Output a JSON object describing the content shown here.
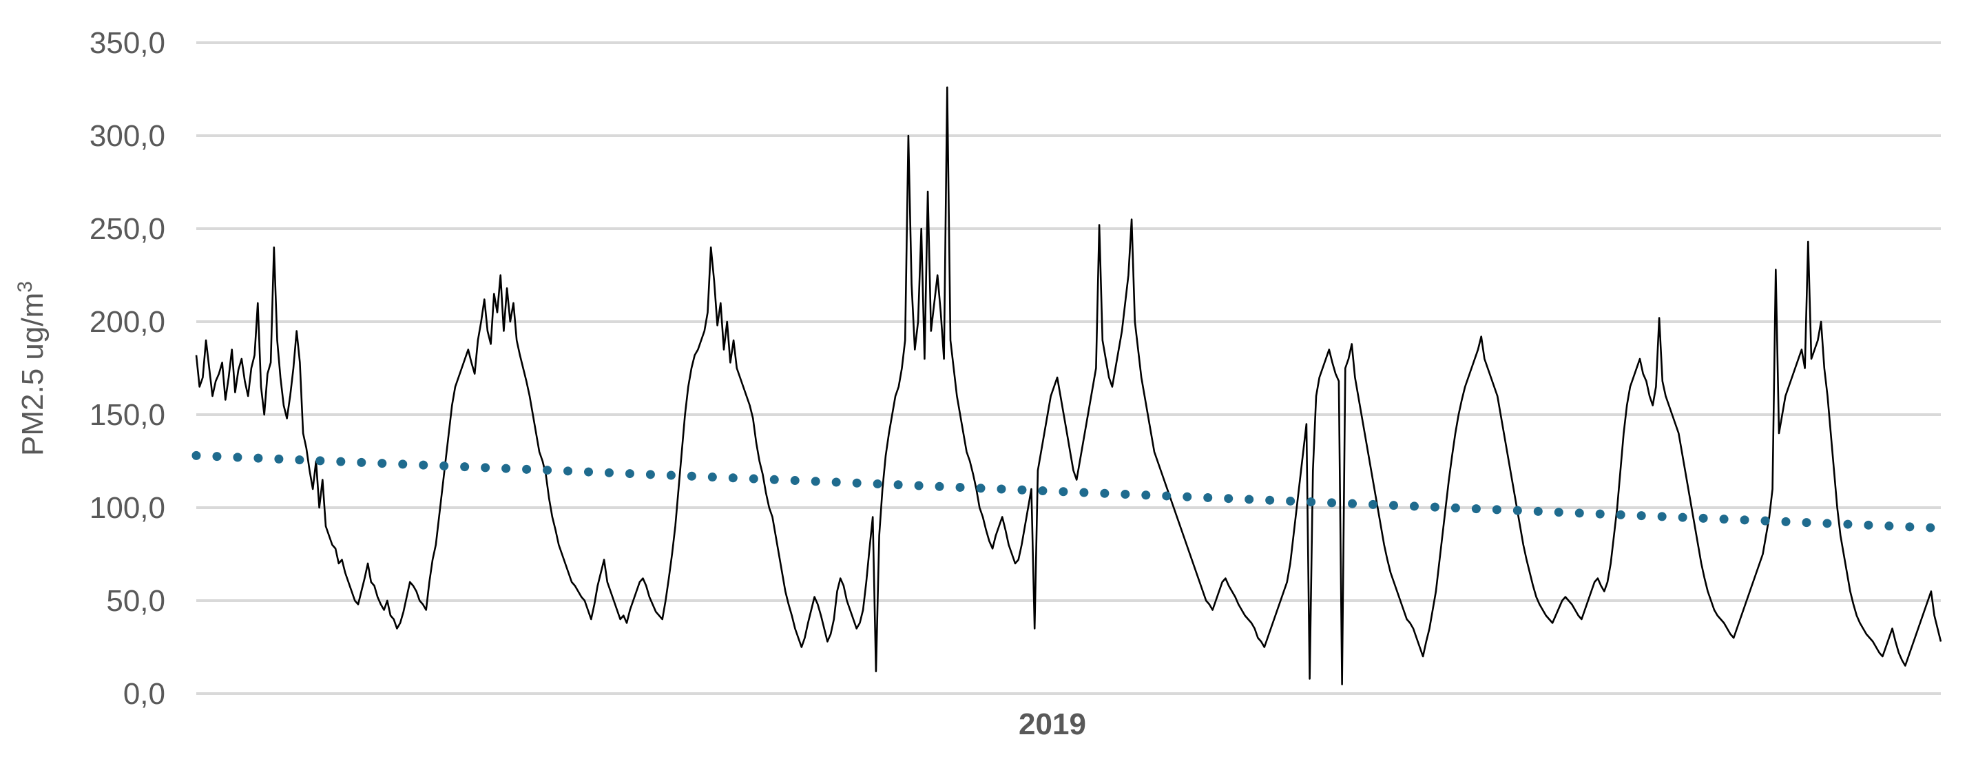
{
  "chart_data": {
    "type": "line",
    "title": "",
    "xlabel": "2019",
    "ylabel": "PM2.5 ug/m",
    "ylabel_superscript": "3",
    "ylim": [
      0,
      350
    ],
    "yticks": [
      "0,0",
      "50,0",
      "100,0",
      "150,0",
      "200,0",
      "250,0",
      "300,0",
      "350,0"
    ],
    "grid": true,
    "legend": "none",
    "series": [
      {
        "type": "line",
        "color": "#000000",
        "values": [
          182,
          165,
          170,
          190,
          175,
          160,
          168,
          172,
          178,
          158,
          170,
          185,
          162,
          174,
          180,
          168,
          160,
          175,
          182,
          210,
          165,
          150,
          172,
          178,
          240,
          190,
          170,
          155,
          148,
          160,
          175,
          195,
          178,
          140,
          132,
          120,
          110,
          125,
          100,
          115,
          90,
          85,
          80,
          78,
          70,
          72,
          65,
          60,
          55,
          50,
          48,
          55,
          62,
          70,
          60,
          58,
          52,
          48,
          45,
          50,
          42,
          40,
          35,
          38,
          44,
          52,
          60,
          58,
          55,
          50,
          48,
          45,
          60,
          72,
          80,
          95,
          110,
          125,
          140,
          155,
          165,
          170,
          175,
          180,
          185,
          178,
          172,
          190,
          200,
          212,
          195,
          188,
          215,
          205,
          225,
          195,
          218,
          200,
          210,
          190,
          182,
          175,
          168,
          160,
          150,
          140,
          130,
          125,
          118,
          105,
          95,
          88,
          80,
          75,
          70,
          65,
          60,
          58,
          55,
          52,
          50,
          45,
          40,
          48,
          58,
          65,
          72,
          60,
          55,
          50,
          45,
          40,
          42,
          38,
          45,
          50,
          55,
          60,
          62,
          58,
          52,
          48,
          44,
          42,
          40,
          50,
          62,
          75,
          90,
          110,
          130,
          150,
          165,
          175,
          182,
          185,
          190,
          195,
          205,
          240,
          222,
          198,
          210,
          185,
          200,
          178,
          190,
          175,
          170,
          165,
          160,
          155,
          148,
          135,
          125,
          118,
          108,
          100,
          95,
          85,
          75,
          65,
          55,
          48,
          42,
          35,
          30,
          25,
          30,
          38,
          45,
          52,
          48,
          42,
          35,
          28,
          32,
          40,
          55,
          62,
          58,
          50,
          45,
          40,
          35,
          38,
          45,
          60,
          78,
          95,
          12,
          85,
          110,
          128,
          140,
          150,
          160,
          165,
          175,
          190,
          300,
          220,
          185,
          200,
          250,
          180,
          270,
          195,
          210,
          225,
          205,
          180,
          326,
          190,
          175,
          160,
          150,
          140,
          130,
          125,
          118,
          110,
          100,
          95,
          88,
          82,
          78,
          85,
          90,
          95,
          88,
          80,
          75,
          70,
          72,
          80,
          90,
          100,
          110,
          35,
          120,
          130,
          140,
          150,
          160,
          165,
          170,
          160,
          150,
          140,
          130,
          120,
          115,
          125,
          135,
          145,
          155,
          165,
          175,
          252,
          190,
          180,
          170,
          165,
          175,
          185,
          195,
          210,
          225,
          255,
          200,
          185,
          170,
          160,
          150,
          140,
          130,
          125,
          120,
          115,
          110,
          105,
          100,
          95,
          90,
          85,
          80,
          75,
          70,
          65,
          60,
          55,
          50,
          48,
          45,
          50,
          55,
          60,
          62,
          58,
          55,
          52,
          48,
          45,
          42,
          40,
          38,
          35,
          30,
          28,
          25,
          30,
          35,
          40,
          45,
          50,
          55,
          60,
          70,
          85,
          100,
          115,
          130,
          145,
          8,
          120,
          160,
          170,
          175,
          180,
          185,
          178,
          172,
          168,
          5,
          175,
          180,
          188,
          170,
          160,
          150,
          140,
          130,
          120,
          110,
          100,
          90,
          80,
          72,
          65,
          60,
          55,
          50,
          45,
          40,
          38,
          35,
          30,
          25,
          20,
          28,
          35,
          45,
          55,
          70,
          85,
          100,
          115,
          128,
          140,
          150,
          158,
          165,
          170,
          175,
          180,
          185,
          192,
          180,
          175,
          170,
          165,
          160,
          150,
          140,
          130,
          120,
          110,
          100,
          90,
          80,
          72,
          65,
          58,
          52,
          48,
          45,
          42,
          40,
          38,
          42,
          46,
          50,
          52,
          50,
          48,
          45,
          42,
          40,
          45,
          50,
          55,
          60,
          62,
          58,
          55,
          60,
          70,
          85,
          100,
          120,
          140,
          155,
          165,
          170,
          175,
          180,
          172,
          168,
          160,
          155,
          165,
          202,
          168,
          160,
          155,
          150,
          145,
          140,
          130,
          120,
          110,
          100,
          90,
          80,
          70,
          62,
          55,
          50,
          45,
          42,
          40,
          38,
          35,
          32,
          30,
          35,
          40,
          45,
          50,
          55,
          60,
          65,
          70,
          75,
          85,
          95,
          110,
          228,
          140,
          150,
          160,
          165,
          170,
          175,
          180,
          185,
          175,
          243,
          180,
          185,
          190,
          200,
          175,
          160,
          140,
          120,
          100,
          85,
          75,
          65,
          55,
          48,
          42,
          38,
          35,
          32,
          30,
          28,
          25,
          22,
          20,
          25,
          30,
          35,
          28,
          22,
          18,
          15,
          20,
          25,
          30,
          35,
          40,
          45,
          50,
          55,
          42,
          35,
          28
        ]
      },
      {
        "type": "trendline",
        "style": "dotted",
        "color": "#1f6b8e",
        "start_value": 128,
        "end_value": 89
      }
    ]
  }
}
